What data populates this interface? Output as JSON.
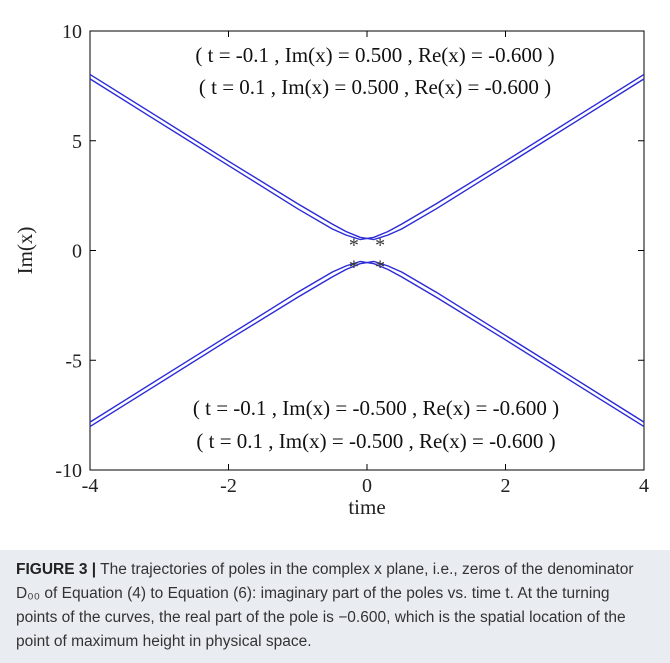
{
  "figure": {
    "caption_label": "FIGURE 3 |",
    "caption_text": " The trajectories of poles in the complex x plane, i.e., zeros of the denominator D₀₀ of Equation (4) to Equation (6): imaginary part of the poles vs. time t. At the turning points of the curves, the real part of the pole is −0.600, which is the spatial location of the point of maximum height in physical space."
  },
  "chart_data": {
    "type": "line",
    "xlabel": "time",
    "ylabel": "Im(x)",
    "xlim": [
      -4,
      4
    ],
    "ylim": [
      -10,
      10
    ],
    "xticks": [
      -4,
      -2,
      0,
      2,
      4
    ],
    "xtick_labels": [
      "-4",
      "-2",
      "0",
      "2",
      "4"
    ],
    "yticks": [
      -10,
      -5,
      0,
      5,
      10
    ],
    "ytick_labels": [
      "-10",
      "-5",
      "0",
      "5",
      "10"
    ],
    "grid": false,
    "line_color": "#2b2bd6",
    "annotations": [
      "( t = -0.1 , Im(x) = 0.500 , Re(x) = -0.600 )",
      "( t = 0.1 , Im(x) = 0.500 , Re(x) = -0.600 )",
      "( t = -0.1 , Im(x) = -0.500 , Re(x) = -0.600 )",
      "( t = 0.1 , Im(x) = -0.500 , Re(x) = -0.600 )"
    ],
    "turning_points": [
      {
        "t": -0.1,
        "im": 0.5
      },
      {
        "t": 0.1,
        "im": 0.5
      },
      {
        "t": -0.1,
        "im": -0.5
      },
      {
        "t": 0.1,
        "im": -0.5
      }
    ],
    "series": [
      {
        "branch": "upper",
        "t_offset": -0.1,
        "x": [
          -4,
          -3,
          -2,
          -1,
          -0.5,
          -0.3,
          -0.1,
          0.1,
          0.3,
          0.5,
          1,
          2,
          3,
          4
        ],
        "y": [
          7.82,
          5.84,
          3.87,
          1.9,
          0.98,
          0.7,
          0.5,
          0.6,
          0.86,
          1.2,
          2.13,
          4.07,
          6.05,
          8.02
        ]
      },
      {
        "branch": "upper",
        "t_offset": 0.1,
        "x": [
          -4,
          -3,
          -2,
          -1,
          -0.5,
          -0.3,
          -0.1,
          0.1,
          0.3,
          0.5,
          1,
          2,
          3,
          4
        ],
        "y": [
          8.02,
          6.05,
          4.07,
          2.13,
          1.2,
          0.86,
          0.6,
          0.5,
          0.7,
          0.98,
          1.9,
          3.87,
          5.84,
          7.82
        ]
      },
      {
        "branch": "lower",
        "t_offset": -0.1,
        "x": [
          -4,
          -3,
          -2,
          -1,
          -0.5,
          -0.3,
          -0.1,
          0.1,
          0.3,
          0.5,
          1,
          2,
          3,
          4
        ],
        "y": [
          -7.82,
          -5.84,
          -3.87,
          -1.9,
          -0.98,
          -0.7,
          -0.5,
          -0.6,
          -0.86,
          -1.2,
          -2.13,
          -4.07,
          -6.05,
          -8.02
        ]
      },
      {
        "branch": "lower",
        "t_offset": 0.1,
        "x": [
          -4,
          -3,
          -2,
          -1,
          -0.5,
          -0.3,
          -0.1,
          0.1,
          0.3,
          0.5,
          1,
          2,
          3,
          4
        ],
        "y": [
          -8.02,
          -6.05,
          -4.07,
          -2.13,
          -1.2,
          -0.86,
          -0.6,
          -0.5,
          -0.7,
          -0.98,
          -1.9,
          -3.87,
          -5.84,
          -7.82
        ]
      }
    ]
  }
}
